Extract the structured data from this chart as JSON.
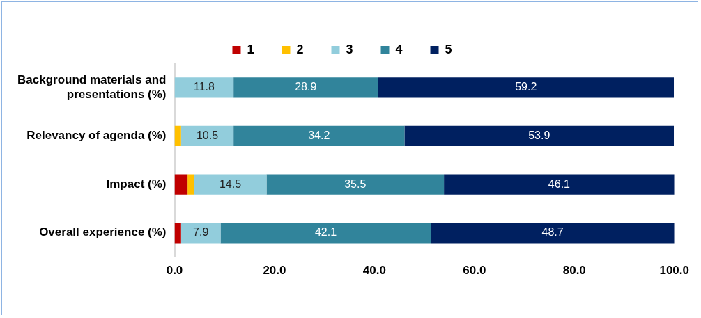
{
  "chart_data": {
    "type": "bar",
    "orientation": "horizontal",
    "stacked": true,
    "categories": [
      "Background materials and presentations (%)",
      "Relevancy of agenda (%)",
      "Impact (%)",
      "Overall experience (%)"
    ],
    "series": [
      {
        "name": "1",
        "color": "#c00000",
        "values": [
          0,
          0,
          2.6,
          1.3
        ],
        "value_labels": [
          null,
          null,
          null,
          null
        ]
      },
      {
        "name": "2",
        "color": "#ffc000",
        "values": [
          0,
          1.3,
          1.3,
          0
        ],
        "value_labels": [
          null,
          null,
          null,
          null
        ]
      },
      {
        "name": "3",
        "color": "#92cddc",
        "values": [
          11.8,
          10.5,
          14.5,
          7.9
        ],
        "value_labels": [
          "11.8",
          "10.5",
          "14.5",
          "7.9"
        ]
      },
      {
        "name": "4",
        "color": "#31849b",
        "values": [
          28.9,
          34.2,
          35.5,
          42.1
        ],
        "value_labels": [
          "28.9",
          "34.2",
          "35.5",
          "42.1"
        ]
      },
      {
        "name": "5",
        "color": "#002060",
        "values": [
          59.2,
          53.9,
          46.1,
          48.7
        ],
        "value_labels": [
          "59.2",
          "53.9",
          "46.1",
          "48.7"
        ]
      }
    ],
    "xlim": [
      0,
      100
    ],
    "xticks": [
      {
        "value": 0,
        "label": "0.0"
      },
      {
        "value": 20,
        "label": "20.0"
      },
      {
        "value": 40,
        "label": "40.0"
      },
      {
        "value": 60,
        "label": "60.0"
      },
      {
        "value": 80,
        "label": "80.0"
      },
      {
        "value": 100,
        "label": "100.0"
      }
    ],
    "grid": false,
    "legend": "top"
  }
}
